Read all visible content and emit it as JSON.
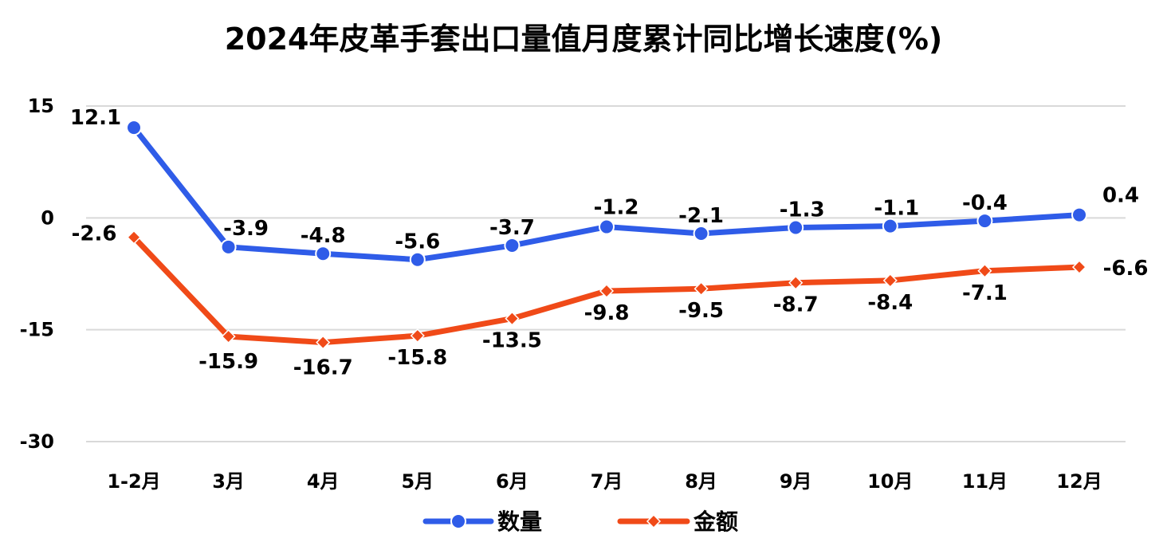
{
  "chart_data": {
    "type": "line",
    "title": "2024年皮革手套出口量值月度累计同比增长速度(%)",
    "categories": [
      "1-2月",
      "3月",
      "4月",
      "5月",
      "6月",
      "7月",
      "8月",
      "9月",
      "10月",
      "11月",
      "12月"
    ],
    "series": [
      {
        "name": "数量",
        "color": "#2f5ce8",
        "marker": "circle",
        "values": [
          12.1,
          -3.9,
          -4.8,
          -5.6,
          -3.7,
          -1.2,
          -2.1,
          -1.3,
          -1.1,
          -0.4,
          0.4
        ],
        "labels": [
          "12.1",
          "-3.9",
          "-4.8",
          "-5.6",
          "-3.7",
          "-1.2",
          "-2.1",
          "-1.3",
          "-1.1",
          "-0.4",
          "0.4"
        ]
      },
      {
        "name": "金额",
        "color": "#f04a18",
        "marker": "diamond",
        "values": [
          -2.6,
          -15.9,
          -16.7,
          -15.8,
          -13.5,
          -9.8,
          -9.5,
          -8.7,
          -8.4,
          -7.1,
          -6.6
        ],
        "labels": [
          "-2.6",
          "-15.9",
          "-16.7",
          "-15.8",
          "-13.5",
          "-9.8",
          "-9.5",
          "-8.7",
          "-8.4",
          "-7.1",
          "-6.6"
        ]
      }
    ],
    "yticks": [
      15,
      0,
      -15,
      -30
    ],
    "ytick_labels": [
      "15",
      "0",
      "-15",
      "-30"
    ],
    "ylim": [
      -30,
      15
    ],
    "grid": true,
    "legend": "bottom-center"
  }
}
